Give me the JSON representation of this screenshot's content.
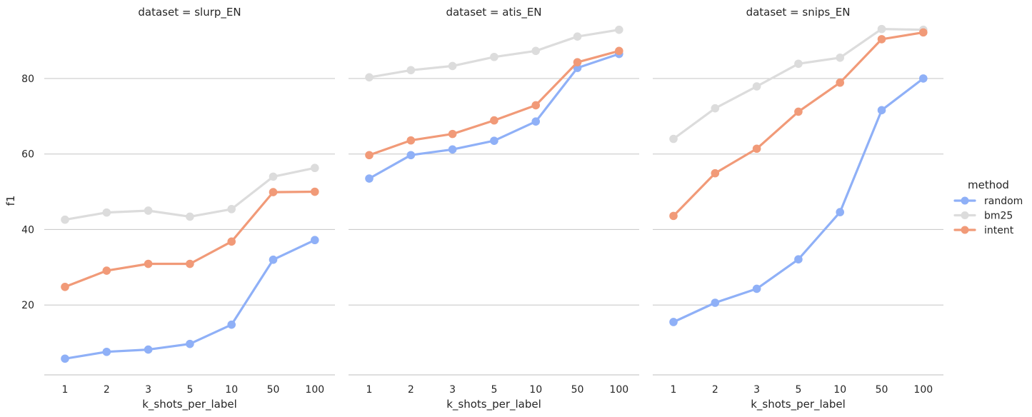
{
  "ylabel": "f1",
  "legend": {
    "title": "method",
    "placement": "right",
    "entries": [
      {
        "label": "random",
        "color": "#8fb0f7"
      },
      {
        "label": "bm25",
        "color": "#dcdcdc"
      },
      {
        "label": "intent",
        "color": "#f19a78"
      }
    ]
  },
  "chart_data": [
    {
      "type": "line",
      "title": "dataset = slurp_EN",
      "xlabel": "k_shots_per_label",
      "ylabel": "f1",
      "categories": [
        "1",
        "2",
        "3",
        "5",
        "10",
        "50",
        "100"
      ],
      "yticks": [
        20,
        40,
        60,
        80
      ],
      "ylim": [
        1.5,
        97
      ],
      "grid": "horizontal",
      "series": [
        {
          "name": "random",
          "color": "#8fb0f7",
          "values": [
            5.8,
            7.6,
            8.2,
            9.7,
            14.8,
            32.0,
            37.2
          ]
        },
        {
          "name": "bm25",
          "color": "#dcdcdc",
          "values": [
            42.6,
            44.5,
            45.0,
            43.4,
            45.4,
            54.0,
            56.3
          ]
        },
        {
          "name": "intent",
          "color": "#f19a78",
          "values": [
            24.8,
            29.1,
            30.9,
            30.9,
            36.8,
            49.9,
            50.0
          ]
        }
      ]
    },
    {
      "type": "line",
      "title": "dataset = atis_EN",
      "xlabel": "k_shots_per_label",
      "ylabel": "",
      "categories": [
        "1",
        "2",
        "3",
        "5",
        "10",
        "50",
        "100"
      ],
      "yticks": [
        20,
        40,
        60,
        80
      ],
      "ylim": [
        1.5,
        97
      ],
      "grid": "horizontal",
      "series": [
        {
          "name": "random",
          "color": "#8fb0f7",
          "values": [
            53.5,
            59.7,
            61.2,
            63.5,
            68.6,
            82.8,
            86.5
          ]
        },
        {
          "name": "bm25",
          "color": "#dcdcdc",
          "values": [
            80.3,
            82.2,
            83.3,
            85.7,
            87.3,
            91.1,
            92.9
          ]
        },
        {
          "name": "intent",
          "color": "#f19a78",
          "values": [
            59.7,
            63.6,
            65.3,
            68.9,
            72.9,
            84.3,
            87.3
          ]
        }
      ]
    },
    {
      "type": "line",
      "title": "dataset = snips_EN",
      "xlabel": "k_shots_per_label",
      "ylabel": "",
      "categories": [
        "1",
        "2",
        "3",
        "5",
        "10",
        "50",
        "100"
      ],
      "yticks": [
        20,
        40,
        60,
        80
      ],
      "ylim": [
        1.5,
        97
      ],
      "grid": "horizontal",
      "series": [
        {
          "name": "random",
          "color": "#8fb0f7",
          "values": [
            15.5,
            20.6,
            24.3,
            32.1,
            44.6,
            71.6,
            80.0
          ]
        },
        {
          "name": "bm25",
          "color": "#dcdcdc",
          "values": [
            64.0,
            72.1,
            77.9,
            83.9,
            85.5,
            93.1,
            92.9
          ]
        },
        {
          "name": "intent",
          "color": "#f19a78",
          "values": [
            43.6,
            54.9,
            61.4,
            71.2,
            78.9,
            90.4,
            92.2
          ]
        }
      ]
    }
  ]
}
